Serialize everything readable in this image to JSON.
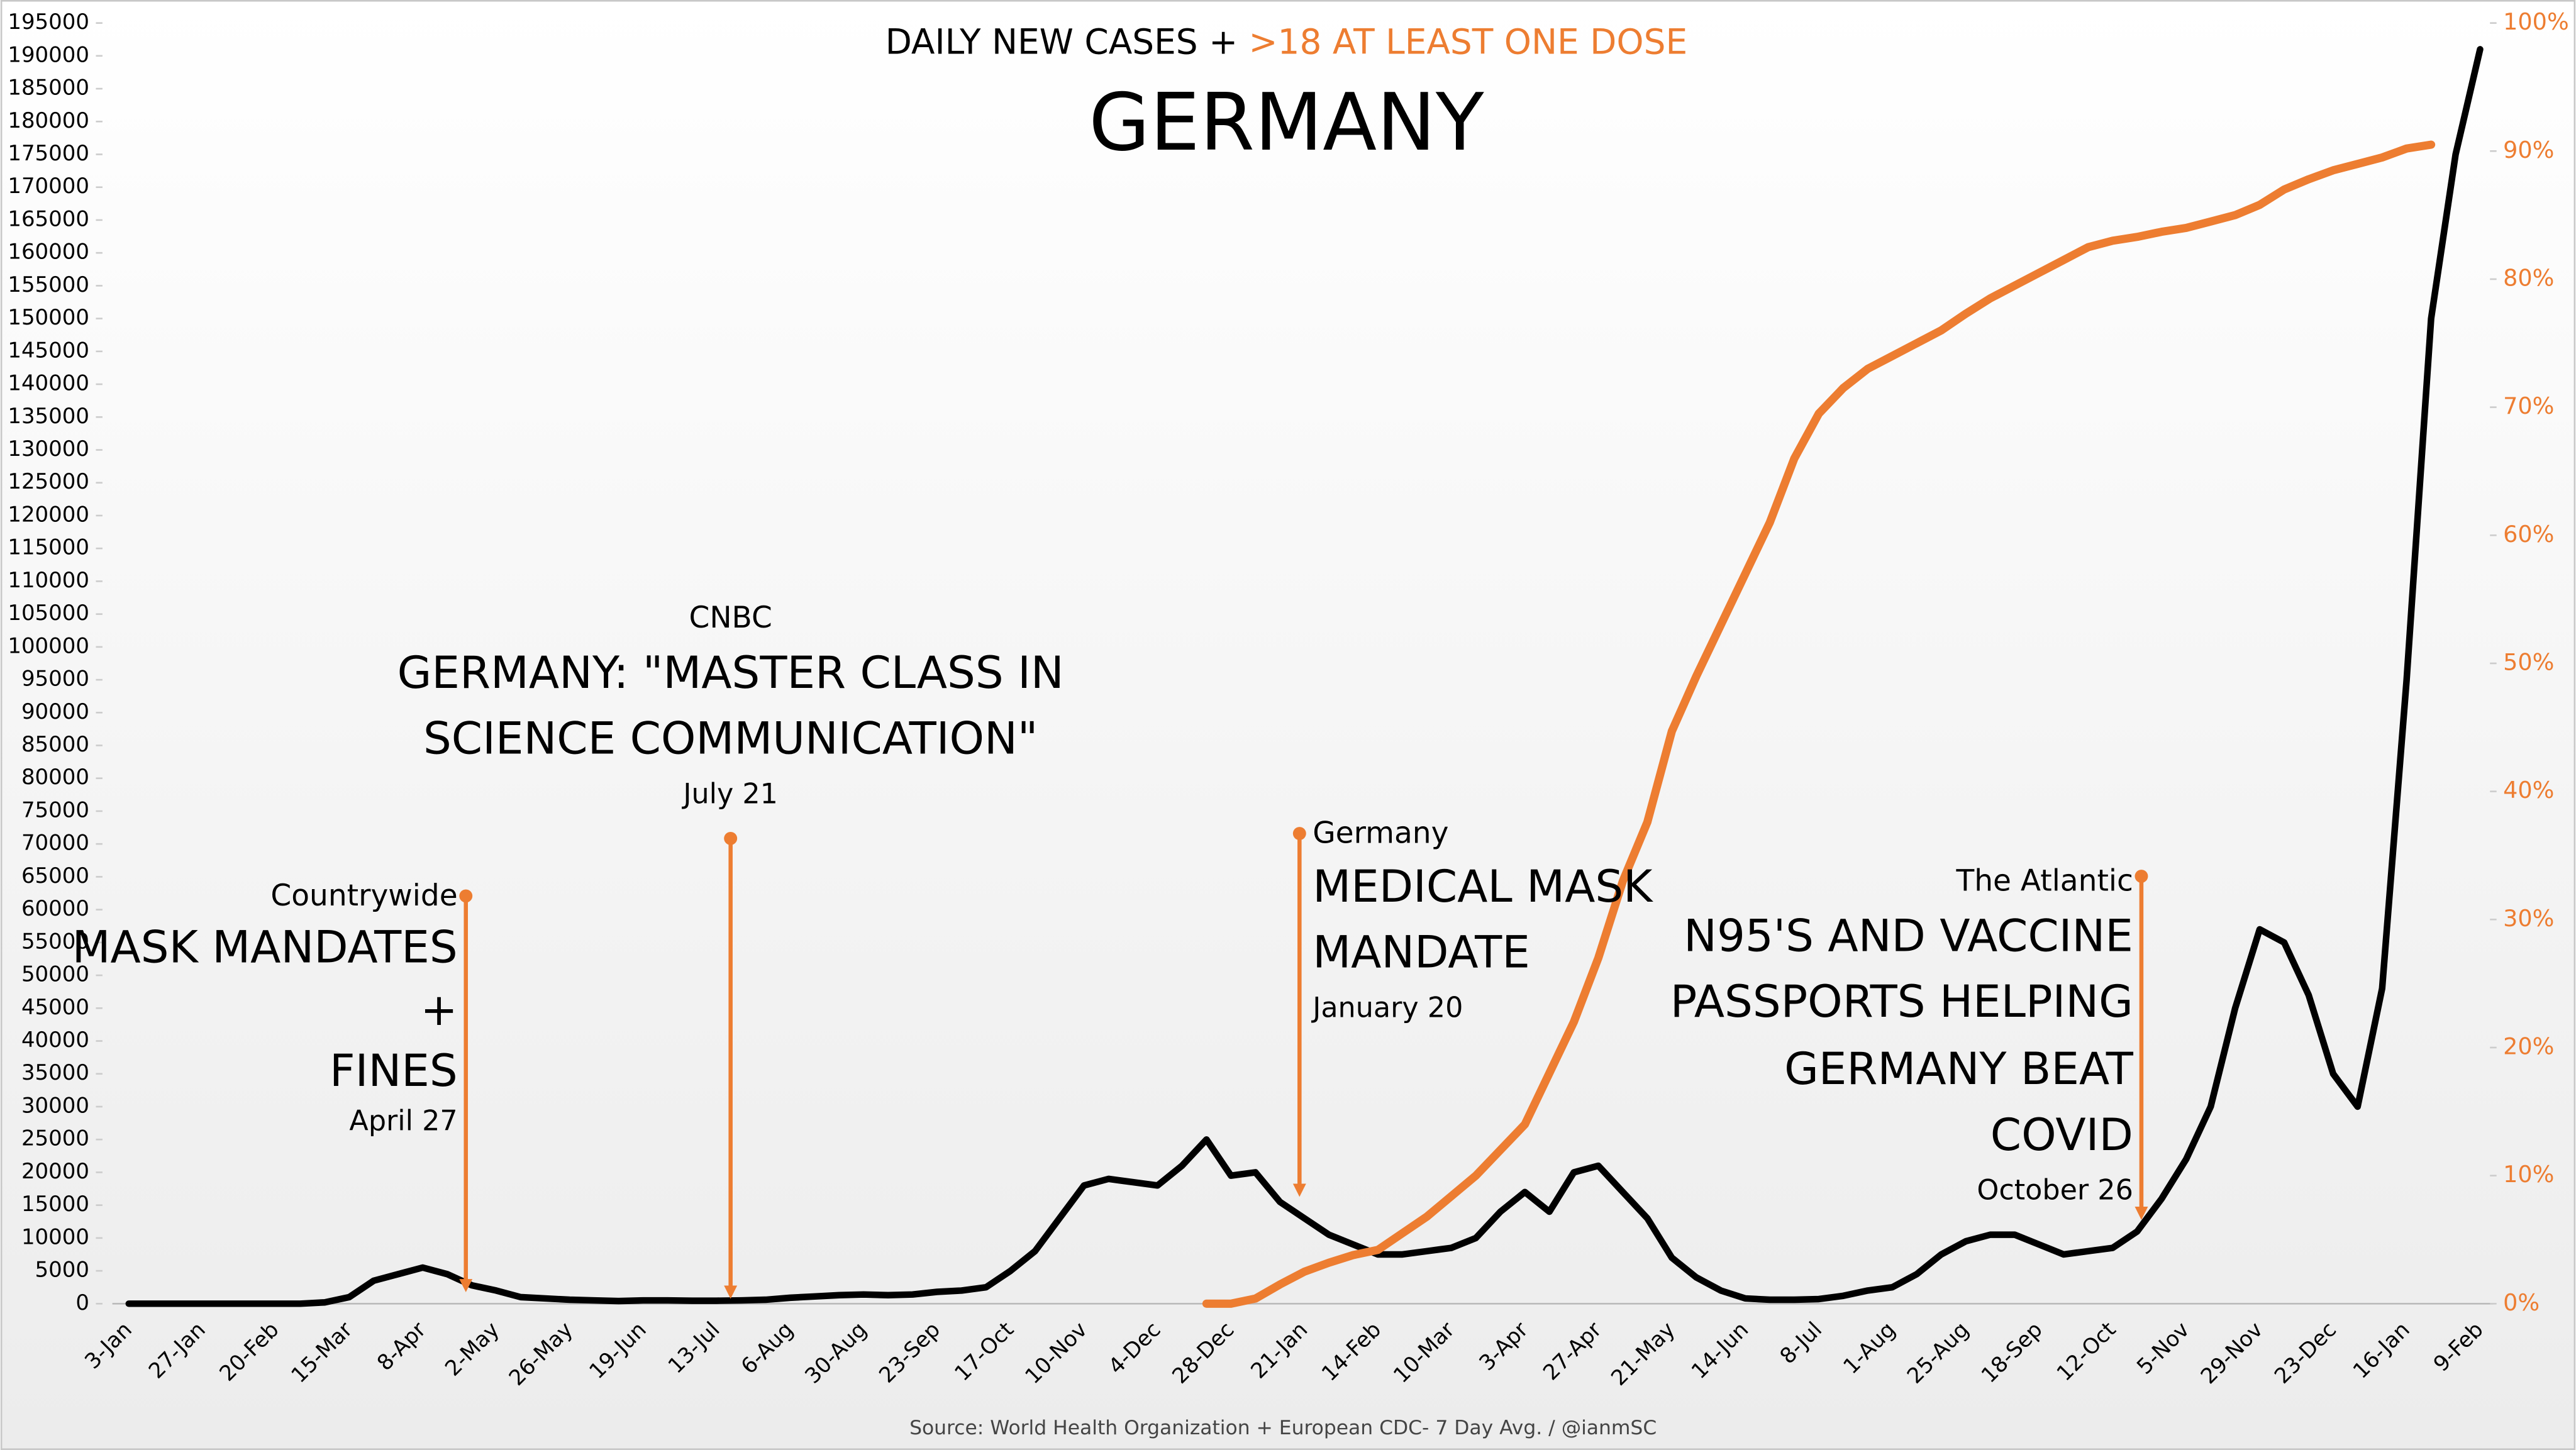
{
  "chart_data": {
    "type": "line",
    "title": "GERMANY",
    "subtitle": [
      "DAILY NEW CASES +",
      ">18 AT LEAST ONE DOSE"
    ],
    "source": "Source: World Health Organization + European CDC- 7 Day Avg. / @ianmSC",
    "categories": [
      "3-Jan",
      null,
      null,
      "27-Jan",
      null,
      null,
      "20-Feb",
      null,
      null,
      "15-Mar",
      null,
      null,
      "8-Apr",
      null,
      null,
      "2-May",
      null,
      null,
      "26-May",
      null,
      null,
      "19-Jun",
      null,
      null,
      "13-Jul",
      null,
      null,
      "6-Aug",
      null,
      null,
      "30-Aug",
      null,
      null,
      "23-Sep",
      null,
      null,
      "17-Oct",
      null,
      null,
      "10-Nov",
      null,
      null,
      "4-Dec",
      null,
      null,
      "28-Dec",
      null,
      null,
      "21-Jan",
      null,
      null,
      "14-Feb",
      null,
      null,
      "10-Mar",
      null,
      null,
      "3-Apr",
      null,
      null,
      "27-Apr",
      null,
      null,
      "21-May",
      null,
      null,
      "14-Jun",
      null,
      null,
      "8-Jul",
      null,
      null,
      "1-Aug",
      null,
      null,
      "25-Aug",
      null,
      null,
      "18-Sep",
      null,
      null,
      "12-Oct",
      null,
      null,
      "5-Nov",
      null,
      null,
      "29-Nov",
      null,
      null,
      "23-Dec",
      null,
      null,
      "16-Jan",
      null,
      null,
      "9-Feb"
    ],
    "series": [
      {
        "color": "#000000",
        "axis": "y",
        "values": [
          0,
          0,
          0,
          0,
          0,
          0,
          0,
          0,
          200,
          1000,
          3500,
          4500,
          5500,
          4500,
          2800,
          2000,
          1000,
          800,
          600,
          500,
          400,
          500,
          500,
          450,
          450,
          500,
          600,
          900,
          1100,
          1300,
          1400,
          1300,
          1400,
          1800,
          2000,
          2500,
          5000,
          8000,
          13000,
          18000,
          19000,
          18500,
          18000,
          21000,
          25000,
          19500,
          20000,
          15500,
          13000,
          10500,
          9000,
          7500,
          7500,
          8000,
          8500,
          10000,
          14000,
          17000,
          14000,
          20000,
          21000,
          17000,
          13000,
          7000,
          4000,
          2000,
          800,
          600,
          600,
          700,
          1200,
          2000,
          2500,
          4500,
          7500,
          9500,
          10500,
          10500,
          9000,
          7500,
          8000,
          8500,
          11000,
          16000,
          22000,
          30000,
          45000,
          57000,
          55000,
          47000,
          35000,
          30000,
          48000,
          95000,
          150000,
          175000,
          191000
        ]
      },
      {
        "color": "#ed7d31",
        "axis": "y2",
        "values": [
          null,
          null,
          null,
          null,
          null,
          null,
          null,
          null,
          null,
          null,
          null,
          null,
          null,
          null,
          null,
          null,
          null,
          null,
          null,
          null,
          null,
          null,
          null,
          null,
          null,
          null,
          null,
          null,
          null,
          null,
          null,
          null,
          null,
          null,
          null,
          null,
          null,
          null,
          null,
          null,
          null,
          null,
          null,
          null,
          0,
          0,
          0.4,
          1.5,
          2.5,
          3.2,
          3.8,
          4.2,
          5.5,
          6.8,
          8.4,
          10,
          12,
          14,
          18,
          22,
          27,
          33,
          37.6,
          44.7,
          49,
          53,
          57,
          61,
          66,
          69.5,
          71.5,
          73,
          74,
          75,
          76,
          77.3,
          78.5,
          79.5,
          80.5,
          81.5,
          82.5,
          83,
          83.3,
          83.7,
          84,
          84.5,
          85,
          85.8,
          87,
          87.8,
          88.5,
          89,
          89.5,
          90.2,
          90.5,
          null,
          null
        ]
      }
    ],
    "ylim": [
      0,
      195000
    ],
    "yticks": [
      0,
      5000,
      10000,
      15000,
      20000,
      25000,
      30000,
      35000,
      40000,
      45000,
      50000,
      55000,
      60000,
      65000,
      70000,
      75000,
      80000,
      85000,
      90000,
      95000,
      100000,
      105000,
      110000,
      115000,
      120000,
      125000,
      130000,
      135000,
      140000,
      145000,
      150000,
      155000,
      160000,
      165000,
      170000,
      175000,
      180000,
      185000,
      190000,
      195000
    ],
    "y2lim": [
      0,
      100
    ],
    "y2ticks": [
      {
        "value": 0,
        "label": "0%"
      },
      {
        "value": 10,
        "label": "10%"
      },
      {
        "value": 20,
        "label": "20%"
      },
      {
        "value": 30,
        "label": "30%"
      },
      {
        "value": 40,
        "label": "40%"
      },
      {
        "value": 50,
        "label": "50%"
      },
      {
        "value": 60,
        "label": "60%"
      },
      {
        "value": 70,
        "label": "70%"
      },
      {
        "value": 80,
        "label": "80%"
      },
      {
        "value": 90,
        "label": "90%"
      },
      {
        "value": 100,
        "label": "100%"
      }
    ],
    "annotations": [
      {
        "source": "Countrywide",
        "headline": [
          "MASK MANDATES",
          "+",
          "FINES"
        ],
        "date": "April 27"
      },
      {
        "source": "CNBC",
        "headline": [
          "GERMANY: \"MASTER CLASS IN",
          "SCIENCE COMMUNICATION\""
        ],
        "date": "July 21"
      },
      {
        "source": "Germany",
        "headline": [
          "MEDICAL MASK",
          "MANDATE"
        ],
        "date": "January 20"
      },
      {
        "source": "The Atlantic",
        "headline": [
          "N95'S AND VACCINE",
          "PASSPORTS HELPING",
          "GERMANY BEAT",
          "COVID"
        ],
        "date": "October 26"
      }
    ]
  }
}
